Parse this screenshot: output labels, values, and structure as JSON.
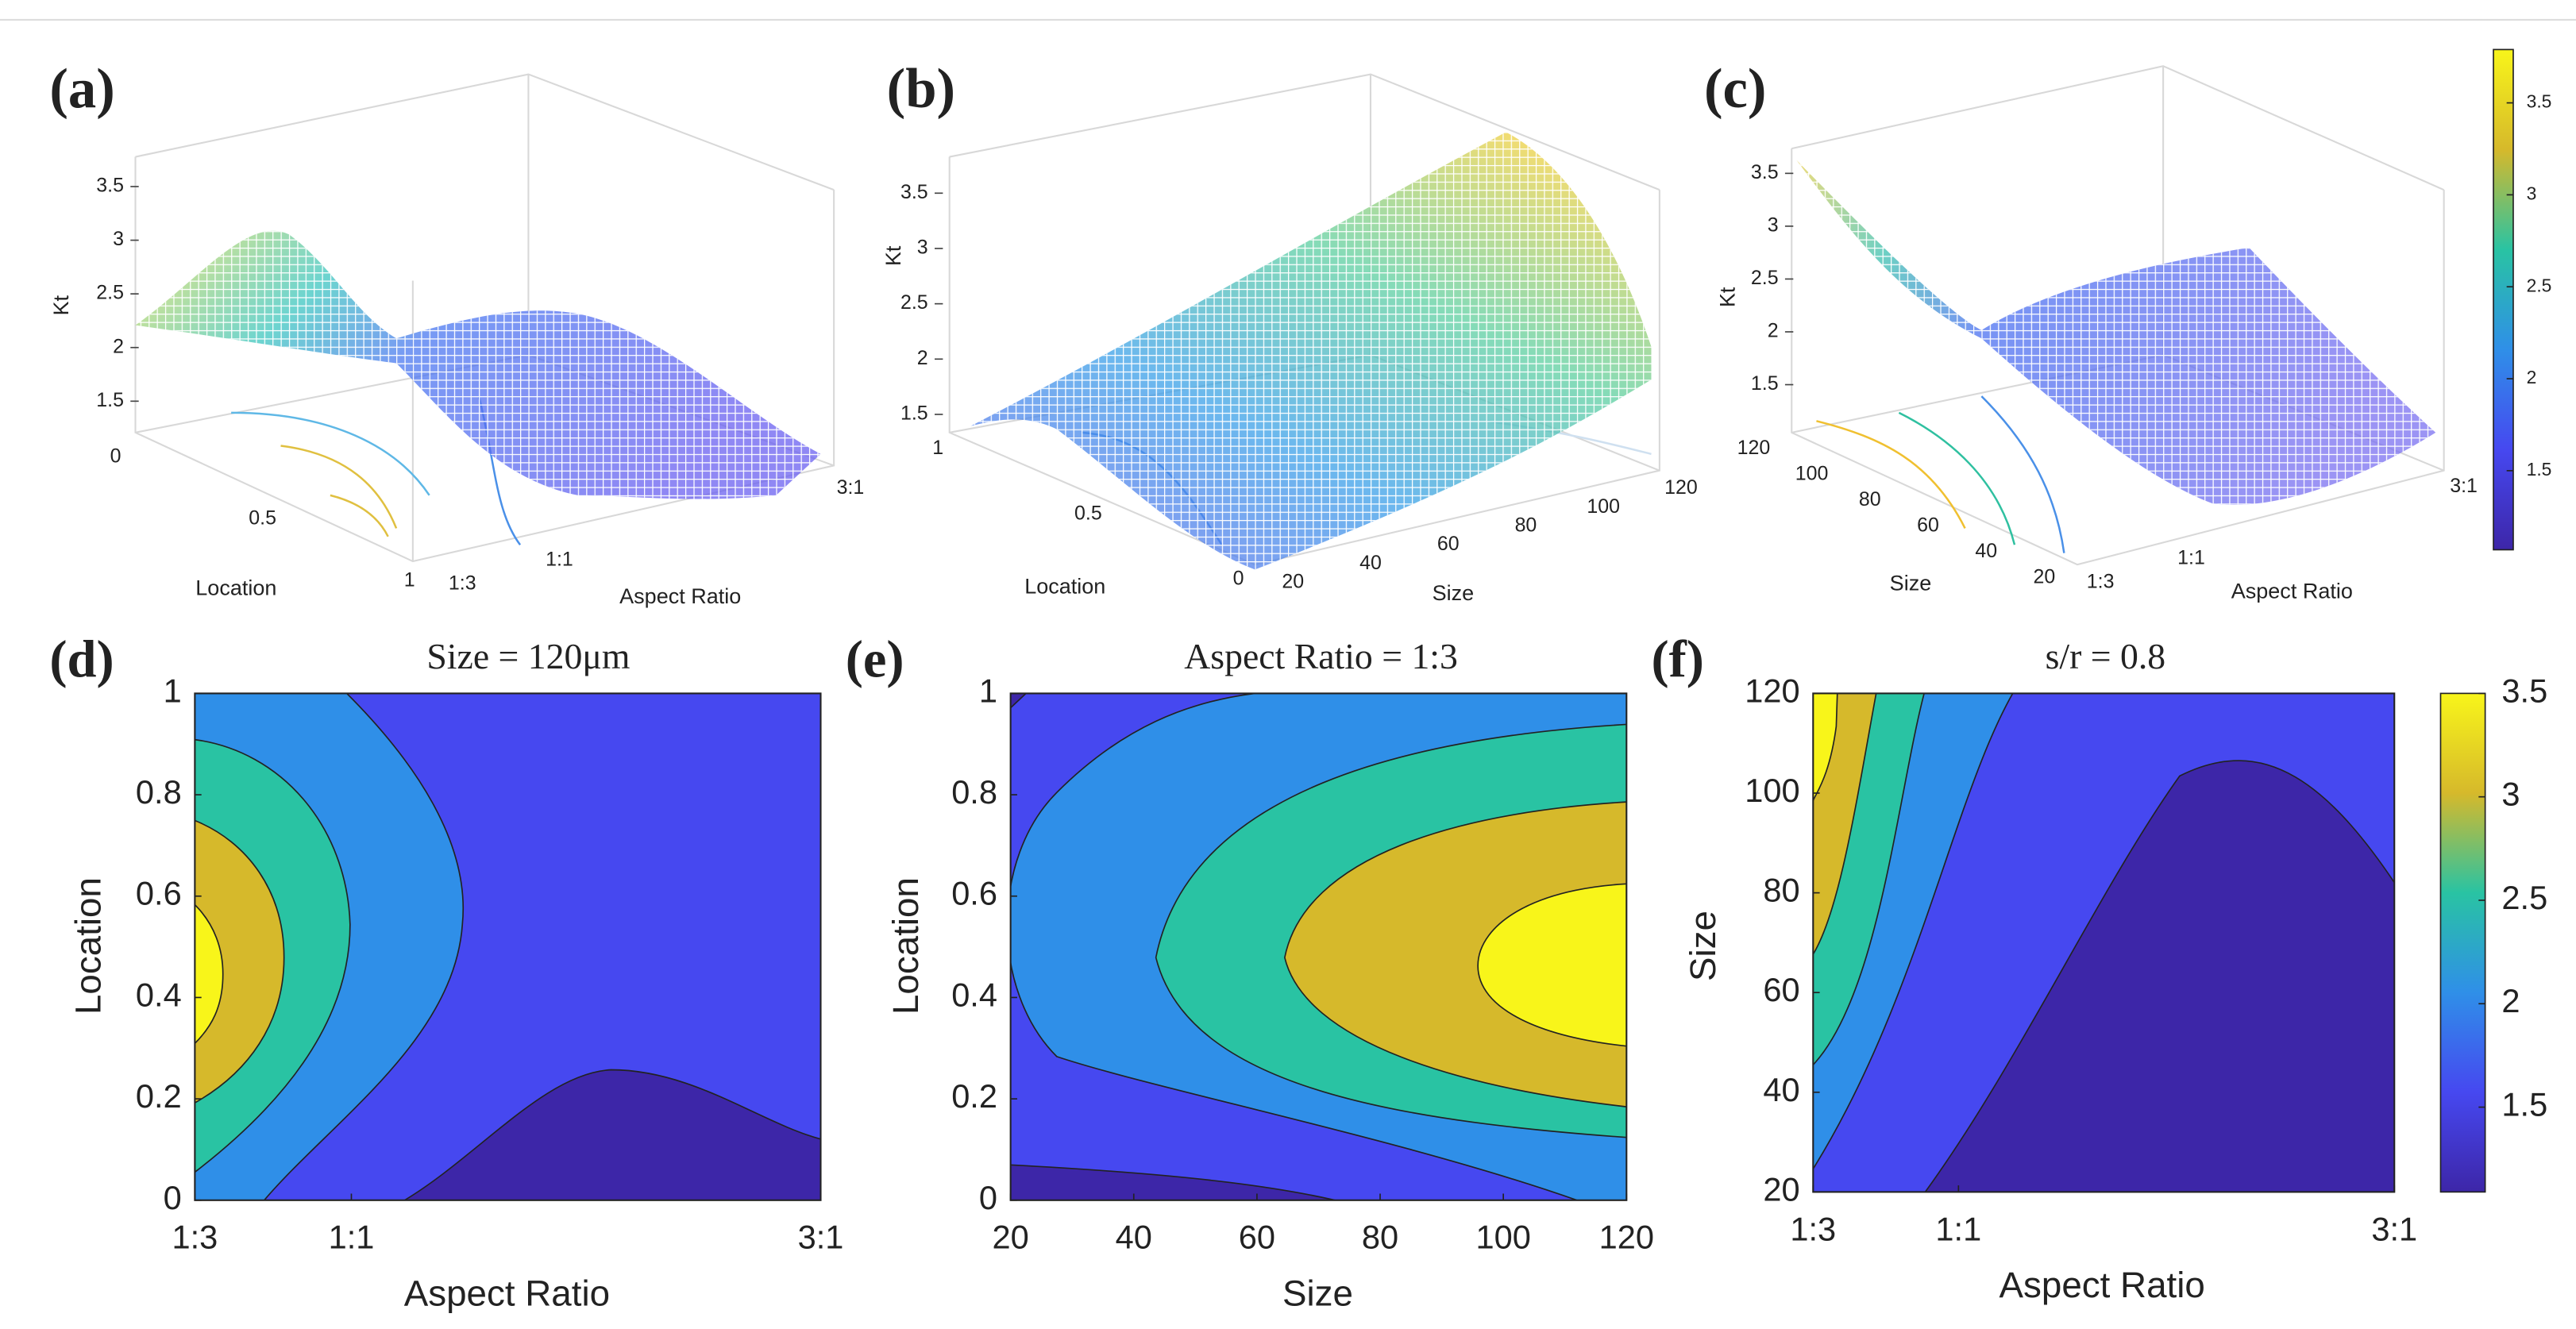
{
  "colormap": [
    "#3d26a8",
    "#4648f0",
    "#2f8fe8",
    "#29c3a3",
    "#d6b92b",
    "#f8f51a"
  ],
  "chart_data": [
    {
      "panel": "(a)",
      "type": "surface",
      "zlabel": "Kt",
      "xlabel": "Aspect Ratio",
      "ylabel": "Location",
      "zlim": [
        1.2,
        3.8
      ],
      "zticks": [
        1.5,
        2,
        2.5,
        3,
        3.5
      ],
      "yticks": [
        0,
        0.5,
        1
      ],
      "xticks": [
        {
          "value": 0.333,
          "label": "1:3"
        },
        {
          "value": 1,
          "label": "1:1"
        },
        {
          "value": 3,
          "label": "3:1"
        }
      ]
    },
    {
      "panel": "(b)",
      "type": "surface",
      "zlabel": "Kt",
      "xlabel": "Size",
      "ylabel": "Location",
      "zlim": [
        1.2,
        3.8
      ],
      "zticks": [
        1.5,
        2,
        2.5,
        3,
        3.5
      ],
      "yticks": [
        0,
        0.5,
        1
      ],
      "xticks": [
        20,
        40,
        60,
        80,
        100,
        120
      ]
    },
    {
      "panel": "(c)",
      "type": "surface",
      "zlabel": "Kt",
      "xlabel": "Aspect Ratio",
      "ylabel": "Size",
      "zlim": [
        1.2,
        3.8
      ],
      "zticks": [
        1.5,
        2,
        2.5,
        3,
        3.5
      ],
      "yticks": [
        20,
        40,
        60,
        80,
        100,
        120
      ],
      "xticks": [
        {
          "value": 0.333,
          "label": "1:3"
        },
        {
          "value": 1,
          "label": "1:1"
        },
        {
          "value": 3,
          "label": "3:1"
        }
      ],
      "colorbar": {
        "clim": [
          1.07,
          3.79
        ],
        "ticks": [
          1.5,
          2,
          2.5,
          3,
          3.5
        ]
      }
    },
    {
      "panel": "(d)",
      "type": "contour",
      "title": "Size = 120μm",
      "xlabel": "Aspect Ratio",
      "ylabel": "Location",
      "xlim": [
        0.333,
        3
      ],
      "ylim": [
        0,
        1
      ],
      "xticks": [
        {
          "value": 0.333,
          "label": "1:3"
        },
        {
          "value": 1,
          "label": "1:1"
        },
        {
          "value": 3,
          "label": "3:1"
        }
      ],
      "yticks": [
        0,
        0.2,
        0.4,
        0.6,
        0.8,
        1
      ]
    },
    {
      "panel": "(e)",
      "type": "contour",
      "title": "Aspect Ratio = 1:3",
      "xlabel": "Size",
      "ylabel": "Location",
      "xlim": [
        20,
        120
      ],
      "ylim": [
        0,
        1
      ],
      "xticks": [
        20,
        40,
        60,
        80,
        100,
        120
      ],
      "yticks": [
        0,
        0.2,
        0.4,
        0.6,
        0.8,
        1
      ]
    },
    {
      "panel": "(f)",
      "type": "contour",
      "title": "s/r = 0.8",
      "xlabel": "Aspect Ratio",
      "ylabel": "Size",
      "xlim": [
        0.333,
        3
      ],
      "ylim": [
        20,
        120
      ],
      "xticks": [
        {
          "value": 0.333,
          "label": "1:3"
        },
        {
          "value": 1,
          "label": "1:1"
        },
        {
          "value": 3,
          "label": "3:1"
        }
      ],
      "yticks": [
        20,
        40,
        60,
        80,
        100,
        120
      ],
      "colorbar": {
        "clim": [
          1.09,
          3.5
        ],
        "ticks": [
          1.5,
          2,
          2.5,
          3,
          3.5
        ]
      }
    }
  ]
}
